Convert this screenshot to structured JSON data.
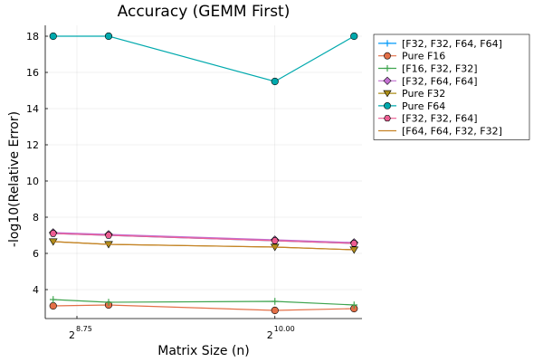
{
  "chart_data": {
    "type": "line",
    "title": "Accuracy (GEMM First)",
    "xlabel": "Matrix Size (n)",
    "ylabel": "-log10(Relative Error)",
    "xscale": "log2",
    "xlim": [
      8.55,
      10.55
    ],
    "ylim": [
      2.4,
      18.6
    ],
    "x_ticks": [
      {
        "value": 8.75,
        "base": "2",
        "exp": "8.75"
      },
      {
        "value": 10.0,
        "base": "2",
        "exp": "10.00"
      }
    ],
    "y_ticks": [
      4,
      6,
      8,
      10,
      12,
      14,
      16,
      18
    ],
    "grid": true,
    "legend_position": "outer-top-right",
    "x_log2": [
      8.6,
      8.95,
      10.0,
      10.5
    ],
    "series": [
      {
        "name": "[F32, F32, F64, F64]",
        "color": "#009AFA",
        "marker": "cross",
        "values": [
          7.1,
          7.0,
          6.7,
          6.55
        ]
      },
      {
        "name": "Pure F16",
        "color": "#E36F47",
        "marker": "circle",
        "values": [
          3.1,
          3.15,
          2.85,
          2.95
        ]
      },
      {
        "name": "[F16, F32, F32]",
        "color": "#3EA44E",
        "marker": "cross",
        "values": [
          3.45,
          3.3,
          3.35,
          3.15
        ]
      },
      {
        "name": "[F32, F64, F64]",
        "color": "#C371D2",
        "marker": "diamond",
        "values": [
          7.15,
          7.05,
          6.75,
          6.6
        ]
      },
      {
        "name": "Pure F32",
        "color": "#AC8E18",
        "marker": "triangle-down",
        "values": [
          6.65,
          6.5,
          6.35,
          6.2
        ]
      },
      {
        "name": "Pure F64",
        "color": "#00A9AD",
        "marker": "circle",
        "values": [
          18.0,
          18.0,
          15.5,
          18.0
        ]
      },
      {
        "name": "[F32, F32, F64]",
        "color": "#ED5D92",
        "marker": "hexagon",
        "values": [
          7.1,
          7.0,
          6.7,
          6.55
        ]
      },
      {
        "name": "[F64, F64, F32, F32]",
        "color": "#C68225",
        "marker": "none",
        "values": [
          6.65,
          6.5,
          6.35,
          6.2
        ]
      }
    ]
  }
}
